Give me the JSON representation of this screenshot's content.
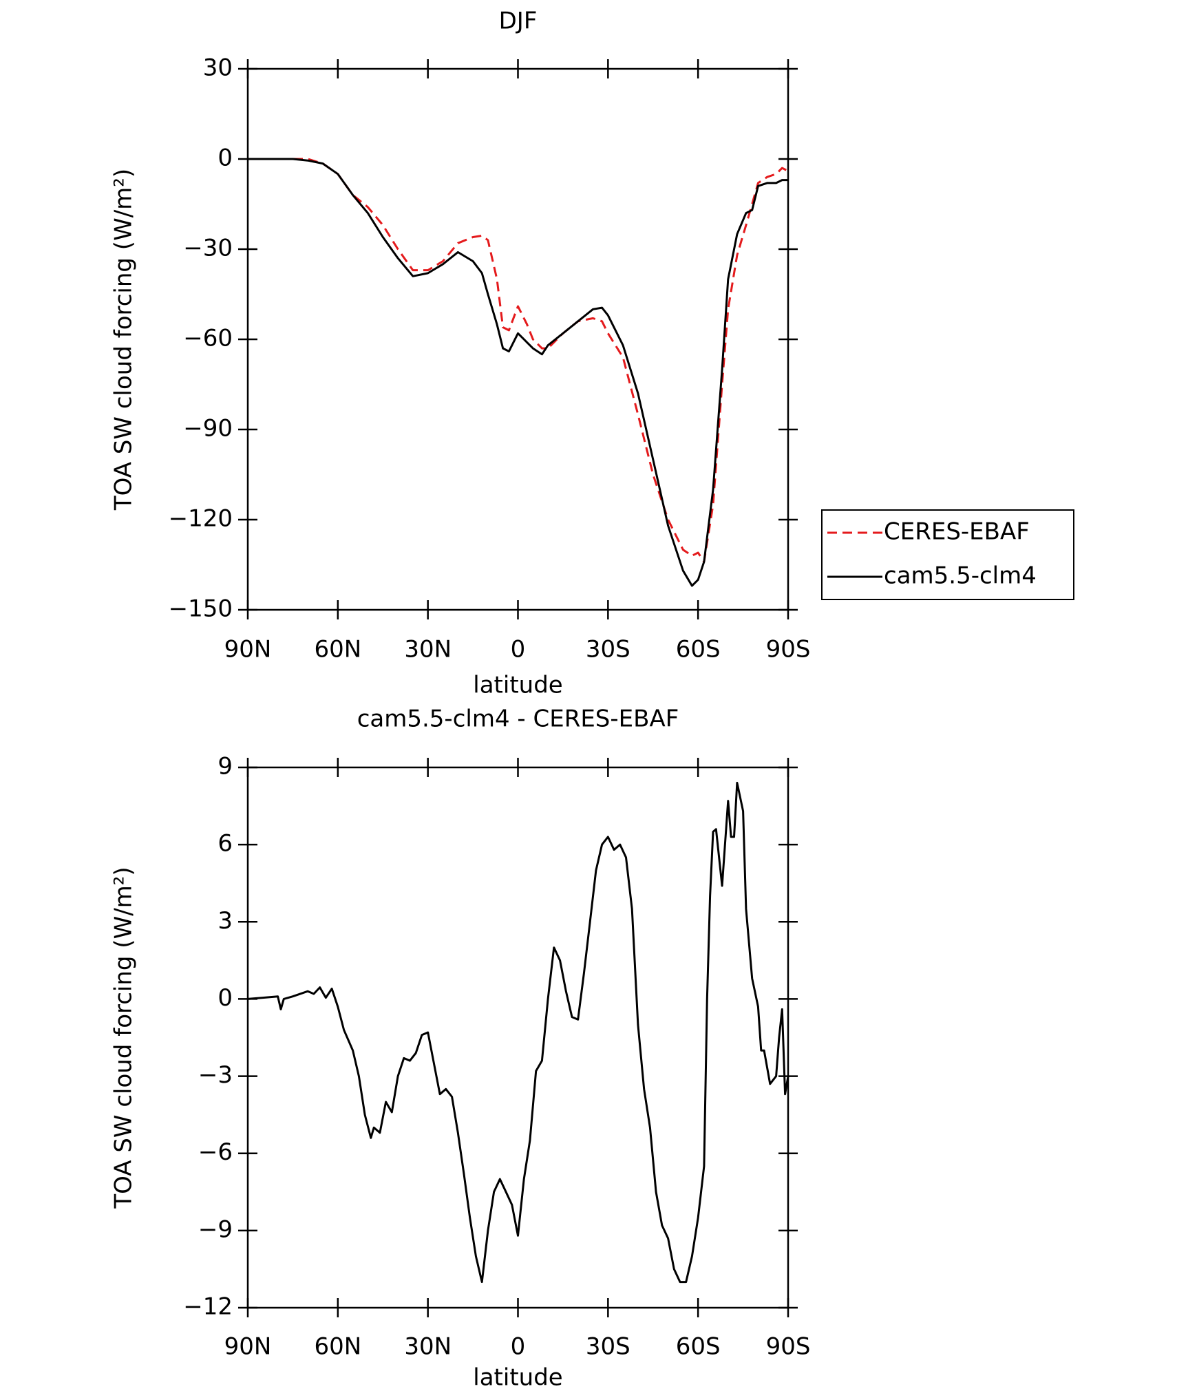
{
  "chart_data": [
    {
      "type": "line",
      "title": "DJF",
      "xlabel": "latitude",
      "ylabel": "TOA SW cloud forcing (W/m²)",
      "x": [
        90,
        85,
        80,
        75,
        70,
        65,
        60,
        55,
        50,
        45,
        40,
        35,
        30,
        25,
        20,
        15,
        12,
        10,
        7,
        5,
        3,
        0,
        -3,
        -5,
        -8,
        -10,
        -15,
        -20,
        -25,
        -28,
        -30,
        -35,
        -40,
        -45,
        -50,
        -55,
        -58,
        -60,
        -62,
        -65,
        -68,
        -70,
        -73,
        -76,
        -78,
        -80,
        -83,
        -86,
        -88,
        -90
      ],
      "series": [
        {
          "name": "CERES-EBAF",
          "color": "#e41a1c",
          "dash": true,
          "values": [
            0,
            0,
            0,
            0,
            0,
            -1.5,
            -5,
            -12,
            -16,
            -22,
            -30,
            -37,
            -37,
            -34,
            -28,
            -26,
            -25.5,
            -27,
            -40,
            -56,
            -57,
            -49,
            -55,
            -60,
            -63,
            -63,
            -58,
            -54,
            -53,
            -54,
            -58,
            -66,
            -85,
            -105,
            -120,
            -130,
            -132,
            -131,
            -134,
            -115,
            -75,
            -50,
            -32,
            -22,
            -15,
            -8,
            -6,
            -5,
            -3,
            -4
          ]
        },
        {
          "name": "cam5.5-clm4",
          "color": "#000000",
          "dash": false,
          "values": [
            0,
            0,
            0,
            0,
            -0.5,
            -1.5,
            -5,
            -12,
            -18,
            -26,
            -33,
            -39,
            -38,
            -35,
            -31,
            -34,
            -38,
            -45,
            -55,
            -63,
            -64,
            -58,
            -61,
            -63,
            -65,
            -62,
            -58,
            -54,
            -50,
            -49.5,
            -52,
            -62,
            -78,
            -100,
            -122,
            -137,
            -142,
            -140,
            -134,
            -110,
            -70,
            -40,
            -25,
            -18,
            -17,
            -9,
            -8,
            -8,
            -7,
            -7
          ]
        }
      ],
      "xlim": [
        90,
        -90
      ],
      "xticks": [
        {
          "value": 90,
          "label": "90N"
        },
        {
          "value": 60,
          "label": "60N"
        },
        {
          "value": 30,
          "label": "30N"
        },
        0,
        {
          "value": -30,
          "label": "30S"
        },
        {
          "value": -60,
          "label": "60S"
        },
        {
          "value": -90,
          "label": "90S"
        }
      ],
      "ylim": [
        -150,
        30
      ],
      "yticks": [
        {
          "value": -150,
          "label": "−150"
        },
        {
          "value": -120,
          "label": "−120"
        },
        {
          "value": -90,
          "label": "−90"
        },
        {
          "value": -60,
          "label": "−60"
        },
        {
          "value": -30,
          "label": "−30"
        },
        0,
        30
      ],
      "legend": "right"
    },
    {
      "type": "line",
      "title": "cam5.5-clm4 - CERES-EBAF",
      "xlabel": "latitude",
      "ylabel": "TOA SW cloud forcing (W/m²)",
      "x": [
        90,
        85,
        80,
        79,
        78,
        75,
        70,
        68,
        66,
        64,
        62,
        60,
        58,
        55,
        53,
        51,
        49,
        48,
        46,
        44,
        42,
        40,
        38,
        36,
        34,
        32,
        30,
        28,
        26,
        24,
        22,
        20,
        18,
        16,
        14,
        12,
        10,
        8,
        6,
        4,
        2,
        0,
        -2,
        -4,
        -6,
        -8,
        -10,
        -12,
        -14,
        -16,
        -18,
        -20,
        -22,
        -24,
        -26,
        -28,
        -30,
        -32,
        -34,
        -36,
        -38,
        -40,
        -42,
        -44,
        -46,
        -48,
        -50,
        -52,
        -54,
        -56,
        -58,
        -60,
        -62,
        -63,
        -64,
        -65,
        -66,
        -68,
        -70,
        -71,
        -72,
        -73,
        -75,
        -76,
        -78,
        -80,
        -81,
        -82,
        -84,
        -86,
        -87,
        -88,
        -89,
        -90
      ],
      "series": [
        {
          "color": "#000000",
          "dash": false,
          "values": [
            0,
            0.05,
            0.1,
            -0.4,
            0,
            0.1,
            0.3,
            0.2,
            0.45,
            0.05,
            0.4,
            -0.3,
            -1.2,
            -2,
            -3,
            -4.5,
            -5.4,
            -5,
            -5.2,
            -4,
            -4.4,
            -3,
            -2.3,
            -2.4,
            -2.1,
            -1.4,
            -1.3,
            -2.5,
            -3.7,
            -3.5,
            -3.8,
            -5.2,
            -6.8,
            -8.5,
            -10,
            -11,
            -9,
            -7.5,
            -7,
            -7.5,
            -8,
            -9.2,
            -7,
            -5.5,
            -2.8,
            -2.4,
            0,
            2,
            1.5,
            0.3,
            -0.7,
            -0.8,
            1,
            3,
            5,
            6,
            6.3,
            5.8,
            6,
            5.5,
            3.5,
            -1,
            -3.5,
            -5,
            -7.5,
            -8.8,
            -9.3,
            -10.5,
            -11,
            -11,
            -10,
            -8.5,
            -6.5,
            0,
            4,
            6.5,
            6.6,
            4.4,
            7.7,
            6.3,
            6.3,
            8.4,
            7.3,
            3.5,
            0.8,
            -0.3,
            -2,
            -2,
            -3.3,
            -3,
            -1.5,
            -0.4,
            -3.7,
            -3
          ]
        }
      ],
      "xlim": [
        90,
        -90
      ],
      "xticks": [
        {
          "value": 90,
          "label": "90N"
        },
        {
          "value": 60,
          "label": "60N"
        },
        {
          "value": 30,
          "label": "30N"
        },
        0,
        {
          "value": -30,
          "label": "30S"
        },
        {
          "value": -60,
          "label": "60S"
        },
        {
          "value": -90,
          "label": "90S"
        }
      ],
      "ylim": [
        -12,
        9
      ],
      "yticks": [
        {
          "value": -12,
          "label": "−12"
        },
        {
          "value": -9,
          "label": "−9"
        },
        {
          "value": -6,
          "label": "−6"
        },
        {
          "value": -3,
          "label": "−3"
        },
        0,
        3,
        6,
        9
      ]
    }
  ]
}
